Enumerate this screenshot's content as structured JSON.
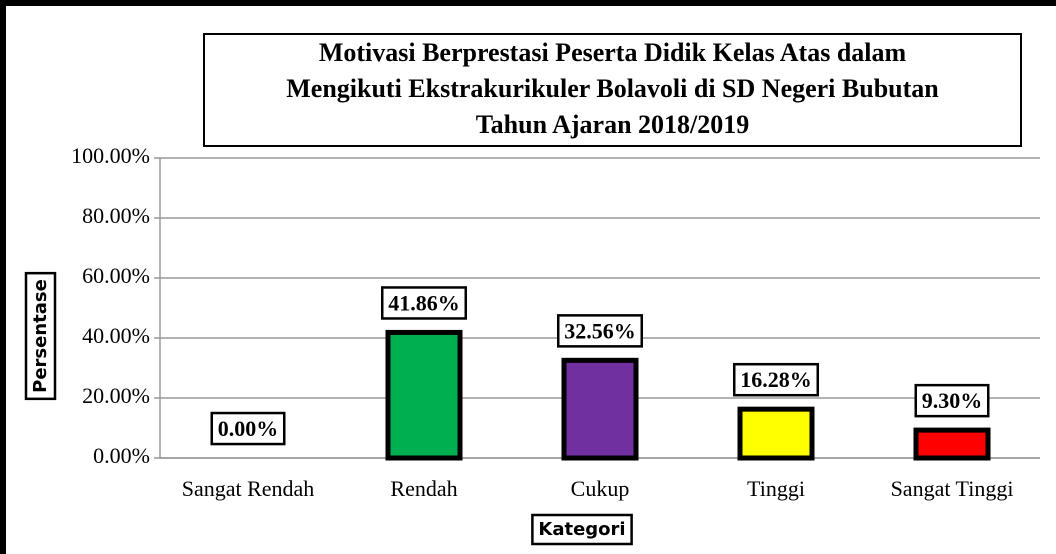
{
  "chart_data": {
    "type": "bar",
    "title": "Motivasi Berprestasi Peserta Didik Kelas Atas dalam\nMengikuti Ekstrakurikuler Bolavoli di SD Negeri Bubutan\nTahun Ajaran 2018/2019",
    "y_label": "Persentase",
    "x_label": "Kategori",
    "categories": [
      "Sangat Rendah",
      "Rendah",
      "Cukup",
      "Tinggi",
      "Sangat Tinggi"
    ],
    "values": [
      0,
      41.86,
      32.56,
      16.28,
      9.3
    ],
    "value_labels": [
      "0.00%",
      "41.86%",
      "32.56%",
      "16.28%",
      "9.30%"
    ],
    "colors": [
      null,
      "#00b050",
      "#7030a0",
      "#ffff00",
      "#ff0000"
    ],
    "ylim": [
      0,
      100
    ],
    "yticks": [
      {
        "value": 0,
        "label": "0.00%"
      },
      {
        "value": 20,
        "label": "20.00%"
      },
      {
        "value": 40,
        "label": "40.00%"
      },
      {
        "value": 60,
        "label": "60.00%"
      },
      {
        "value": 80,
        "label": "80.00%"
      },
      {
        "value": 100,
        "label": "100.00%"
      }
    ],
    "grid": true
  }
}
